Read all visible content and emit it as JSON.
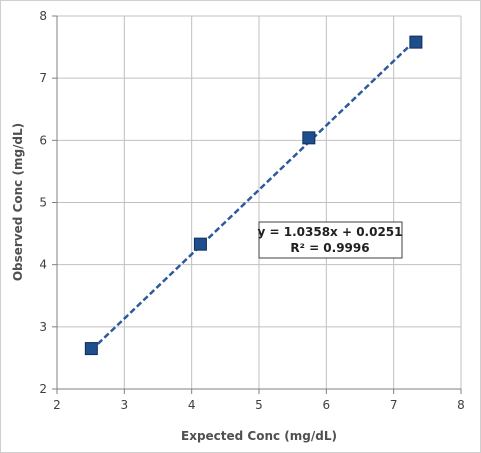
{
  "chart_data": {
    "type": "scatter",
    "title": "",
    "xlabel": "Expected Conc (mg/dL)",
    "ylabel": "Observed Conc (mg/dL)",
    "xlim": [
      2,
      8
    ],
    "ylim": [
      2,
      8
    ],
    "x_ticks": [
      "2",
      "3",
      "4",
      "5",
      "6",
      "7",
      "8"
    ],
    "y_ticks": [
      "2",
      "3",
      "4",
      "5",
      "6",
      "7",
      "8"
    ],
    "grid": true,
    "legend": "none",
    "series": [
      {
        "points": [
          {
            "x": 2.51,
            "y": 2.65
          },
          {
            "x": 4.13,
            "y": 4.33
          },
          {
            "x": 5.74,
            "y": 6.04
          },
          {
            "x": 7.33,
            "y": 7.58
          }
        ],
        "marker": "square",
        "color": "#1f4e8c"
      }
    ],
    "trendline": {
      "type": "linear",
      "slope": 1.0358,
      "intercept": 0.0251,
      "style": "dashed",
      "color": "#2e5a9c",
      "equation_label": "y = 1.0358x + 0.0251",
      "r2_label": "R² = 0.9996"
    }
  },
  "colors": {
    "grid": "#c0c0c0",
    "marker": "#1f4e8c",
    "marker_stroke": "#0f2e5c",
    "trendline": "#2e5a9c"
  }
}
